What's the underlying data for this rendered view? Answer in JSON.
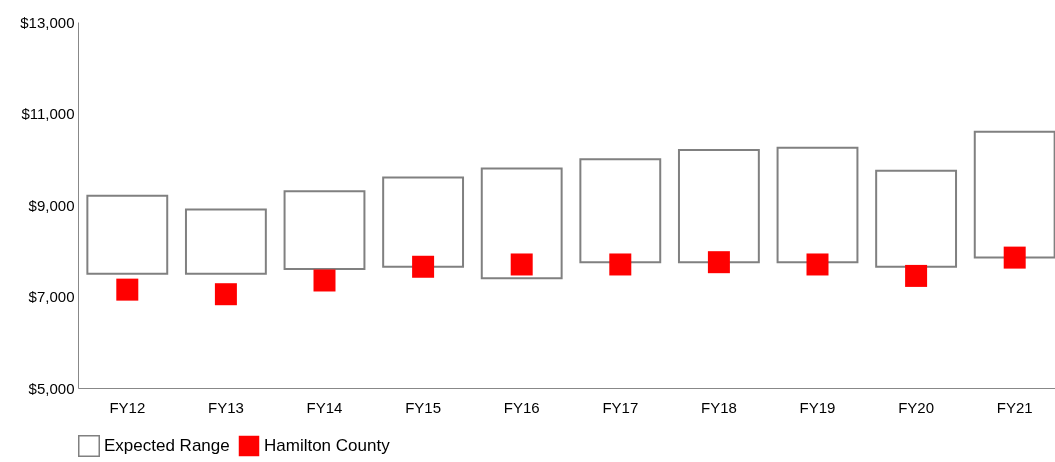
{
  "chart_data": {
    "type": "bar",
    "categories": [
      "FY12",
      "FY13",
      "FY14",
      "FY15",
      "FY16",
      "FY17",
      "FY18",
      "FY19",
      "FY20",
      "FY21"
    ],
    "ylim": [
      5000,
      13000
    ],
    "yticks": [
      {
        "value": 5000,
        "label": "$5,000"
      },
      {
        "value": 7000,
        "label": "$7,000"
      },
      {
        "value": 9000,
        "label": "$9,000"
      },
      {
        "value": 11000,
        "label": "$11,000"
      },
      {
        "value": 13000,
        "label": "$13,000"
      }
    ],
    "grid": false,
    "legend": "bottom",
    "series": [
      {
        "name": "Expected Range",
        "color": "#808080",
        "base": [
          7500,
          7500,
          7600,
          7650,
          7400,
          7750,
          7750,
          7750,
          7650,
          7850
        ],
        "values": [
          1700,
          1400,
          1700,
          1950,
          2400,
          2250,
          2450,
          2500,
          2100,
          2750
        ]
      },
      {
        "name": "Hamilton County",
        "type": "scatter",
        "marker": "square",
        "color": "#ff0000",
        "values": [
          7150,
          7050,
          7350,
          7650,
          7700,
          7700,
          7750,
          7700,
          7450,
          7850
        ]
      }
    ]
  }
}
